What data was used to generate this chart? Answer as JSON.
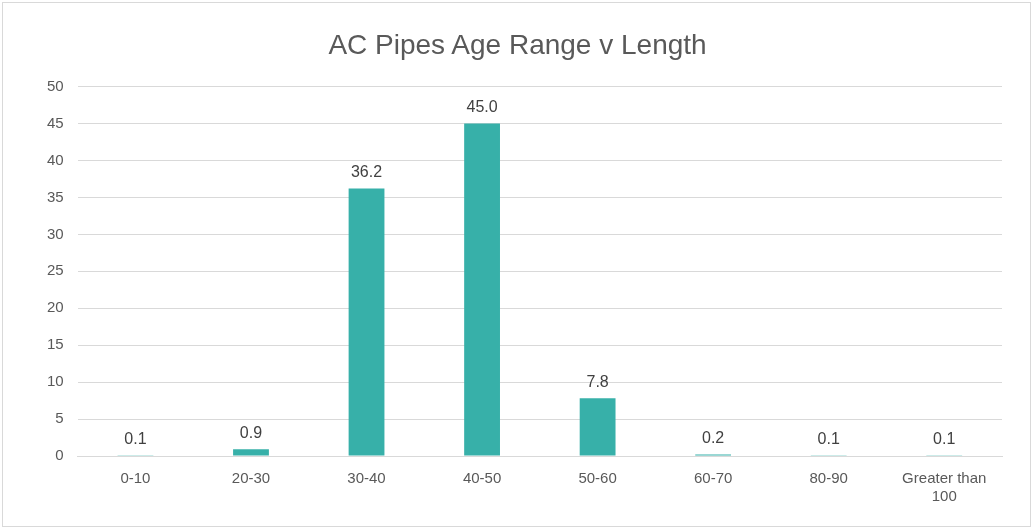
{
  "chart_data": {
    "type": "bar",
    "title": "AC Pipes Age Range v Length",
    "categories": [
      "0-10",
      "20-30",
      "30-40",
      "40-50",
      "50-60",
      "60-70",
      "80-90",
      "Greater than 100"
    ],
    "values": [
      0.1,
      0.9,
      36.2,
      45.0,
      7.8,
      0.2,
      0.1,
      0.1
    ],
    "value_labels": [
      "0.1",
      "0.9",
      "36.2",
      "45.0",
      "7.8",
      "0.2",
      "0.1",
      "0.1"
    ],
    "color": "#37b0a9",
    "ylim": [
      0,
      50
    ],
    "yticks": [
      0,
      5,
      10,
      15,
      20,
      25,
      30,
      35,
      40,
      45,
      50
    ],
    "grid": "y",
    "legend": false
  }
}
